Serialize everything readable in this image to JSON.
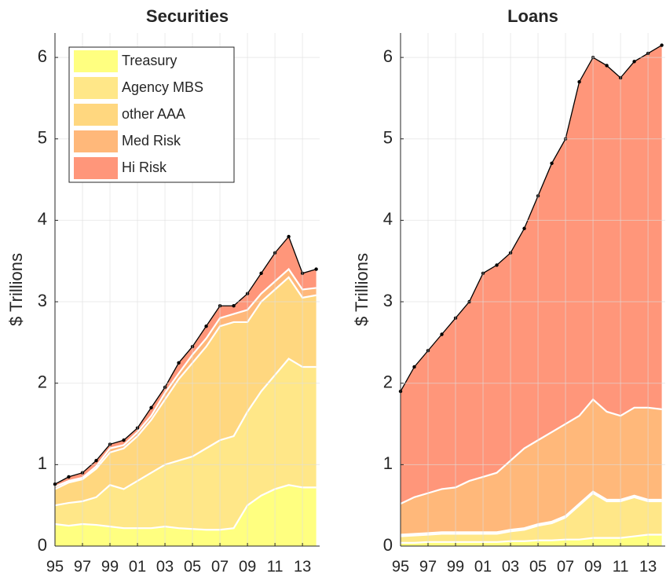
{
  "chart_data": [
    {
      "type": "stacked-area",
      "title": "Securities",
      "ylabel": "$ Trillions",
      "x": [
        1995,
        1996,
        1997,
        1998,
        1999,
        2000,
        2001,
        2002,
        2003,
        2004,
        2005,
        2006,
        2007,
        2008,
        2009,
        2010,
        2011,
        2012,
        2013,
        2014
      ],
      "series": [
        {
          "name": "Treasury",
          "color": "#ffff80",
          "values": [
            0.27,
            0.25,
            0.27,
            0.26,
            0.24,
            0.22,
            0.22,
            0.22,
            0.24,
            0.22,
            0.21,
            0.2,
            0.2,
            0.22,
            0.5,
            0.62,
            0.7,
            0.75,
            0.72,
            0.72
          ]
        },
        {
          "name": "Agency MBS",
          "color": "#ffe788",
          "values": [
            0.23,
            0.28,
            0.28,
            0.34,
            0.51,
            0.48,
            0.58,
            0.68,
            0.76,
            0.83,
            0.89,
            1.0,
            1.1,
            1.13,
            1.15,
            1.28,
            1.4,
            1.55,
            1.48,
            1.48
          ]
        },
        {
          "name": "other AAA",
          "color": "#ffd77f",
          "values": [
            0.2,
            0.25,
            0.27,
            0.35,
            0.4,
            0.5,
            0.55,
            0.65,
            0.8,
            1.0,
            1.15,
            1.25,
            1.4,
            1.4,
            1.1,
            1.1,
            1.05,
            1.0,
            0.85,
            0.88
          ]
        },
        {
          "name": "Med Risk",
          "color": "#ffb87a",
          "values": [
            0.03,
            0.02,
            0.02,
            0.03,
            0.05,
            0.04,
            0.05,
            0.05,
            0.08,
            0.07,
            0.1,
            0.1,
            0.1,
            0.1,
            0.15,
            0.1,
            0.1,
            0.1,
            0.1,
            0.09
          ]
        },
        {
          "name": "Hi Risk",
          "color": "#ff967a",
          "values": [
            0.03,
            0.05,
            0.06,
            0.07,
            0.05,
            0.06,
            0.05,
            0.1,
            0.07,
            0.13,
            0.1,
            0.15,
            0.15,
            0.1,
            0.2,
            0.25,
            0.35,
            0.4,
            0.2,
            0.23
          ]
        }
      ],
      "xlim": [
        1995,
        2014.25
      ],
      "ylim": [
        0,
        6.3
      ],
      "xticks": [
        {
          "value": 1995,
          "label": "95"
        },
        {
          "value": 1997,
          "label": "97"
        },
        {
          "value": 1999,
          "label": "99"
        },
        {
          "value": 2001,
          "label": "01"
        },
        {
          "value": 2003,
          "label": "03"
        },
        {
          "value": 2005,
          "label": "05"
        },
        {
          "value": 2007,
          "label": "07"
        },
        {
          "value": 2009,
          "label": "09"
        },
        {
          "value": 2011,
          "label": "11"
        },
        {
          "value": 2013,
          "label": "13"
        }
      ],
      "yticks": [
        0,
        1,
        2,
        3,
        4,
        5,
        6
      ],
      "grid": true,
      "legend": "upper-left"
    },
    {
      "type": "stacked-area",
      "title": "Loans",
      "ylabel": "$ Trillions",
      "x": [
        1995,
        1996,
        1997,
        1998,
        1999,
        2000,
        2001,
        2002,
        2003,
        2004,
        2005,
        2006,
        2007,
        2008,
        2009,
        2010,
        2011,
        2012,
        2013,
        2014
      ],
      "series": [
        {
          "color": "#ffff80",
          "values": [
            0.04,
            0.04,
            0.05,
            0.05,
            0.05,
            0.05,
            0.05,
            0.05,
            0.06,
            0.06,
            0.07,
            0.07,
            0.08,
            0.08,
            0.1,
            0.1,
            0.1,
            0.12,
            0.14,
            0.14
          ]
        },
        {
          "color": "#ffe788",
          "values": [
            0.08,
            0.09,
            0.09,
            0.1,
            0.1,
            0.1,
            0.1,
            0.1,
            0.12,
            0.14,
            0.18,
            0.21,
            0.27,
            0.42,
            0.55,
            0.45,
            0.45,
            0.48,
            0.41,
            0.41
          ]
        },
        {
          "color": "#ffd77f",
          "values": [
            0.02,
            0.02,
            0.02,
            0.02,
            0.02,
            0.02,
            0.02,
            0.02,
            0.02,
            0.02,
            0.02,
            0.02,
            0.02,
            0.02,
            0.02,
            0.02,
            0.02,
            0.02,
            0.02,
            0.02
          ]
        },
        {
          "color": "#ffb87a",
          "values": [
            0.38,
            0.45,
            0.49,
            0.53,
            0.55,
            0.63,
            0.68,
            0.73,
            0.85,
            0.98,
            1.03,
            1.1,
            1.13,
            1.08,
            1.13,
            1.08,
            1.03,
            1.08,
            1.13,
            1.11
          ]
        },
        {
          "color": "#ff967a",
          "values": [
            1.38,
            1.6,
            1.75,
            1.9,
            2.08,
            2.2,
            2.5,
            2.55,
            2.55,
            2.7,
            3.0,
            3.3,
            3.5,
            4.1,
            4.2,
            4.25,
            4.15,
            4.25,
            4.35,
            4.47
          ]
        }
      ],
      "xlim": [
        1995,
        2014.25
      ],
      "ylim": [
        0,
        6.3
      ],
      "xticks": [
        {
          "value": 1995,
          "label": "95"
        },
        {
          "value": 1997,
          "label": "97"
        },
        {
          "value": 1999,
          "label": "99"
        },
        {
          "value": 2001,
          "label": "01"
        },
        {
          "value": 2003,
          "label": "03"
        },
        {
          "value": 2005,
          "label": "05"
        },
        {
          "value": 2007,
          "label": "07"
        },
        {
          "value": 2009,
          "label": "09"
        },
        {
          "value": 2011,
          "label": "11"
        },
        {
          "value": 2013,
          "label": "13"
        }
      ],
      "yticks": [
        0,
        1,
        2,
        3,
        4,
        5,
        6
      ],
      "grid": true
    }
  ]
}
